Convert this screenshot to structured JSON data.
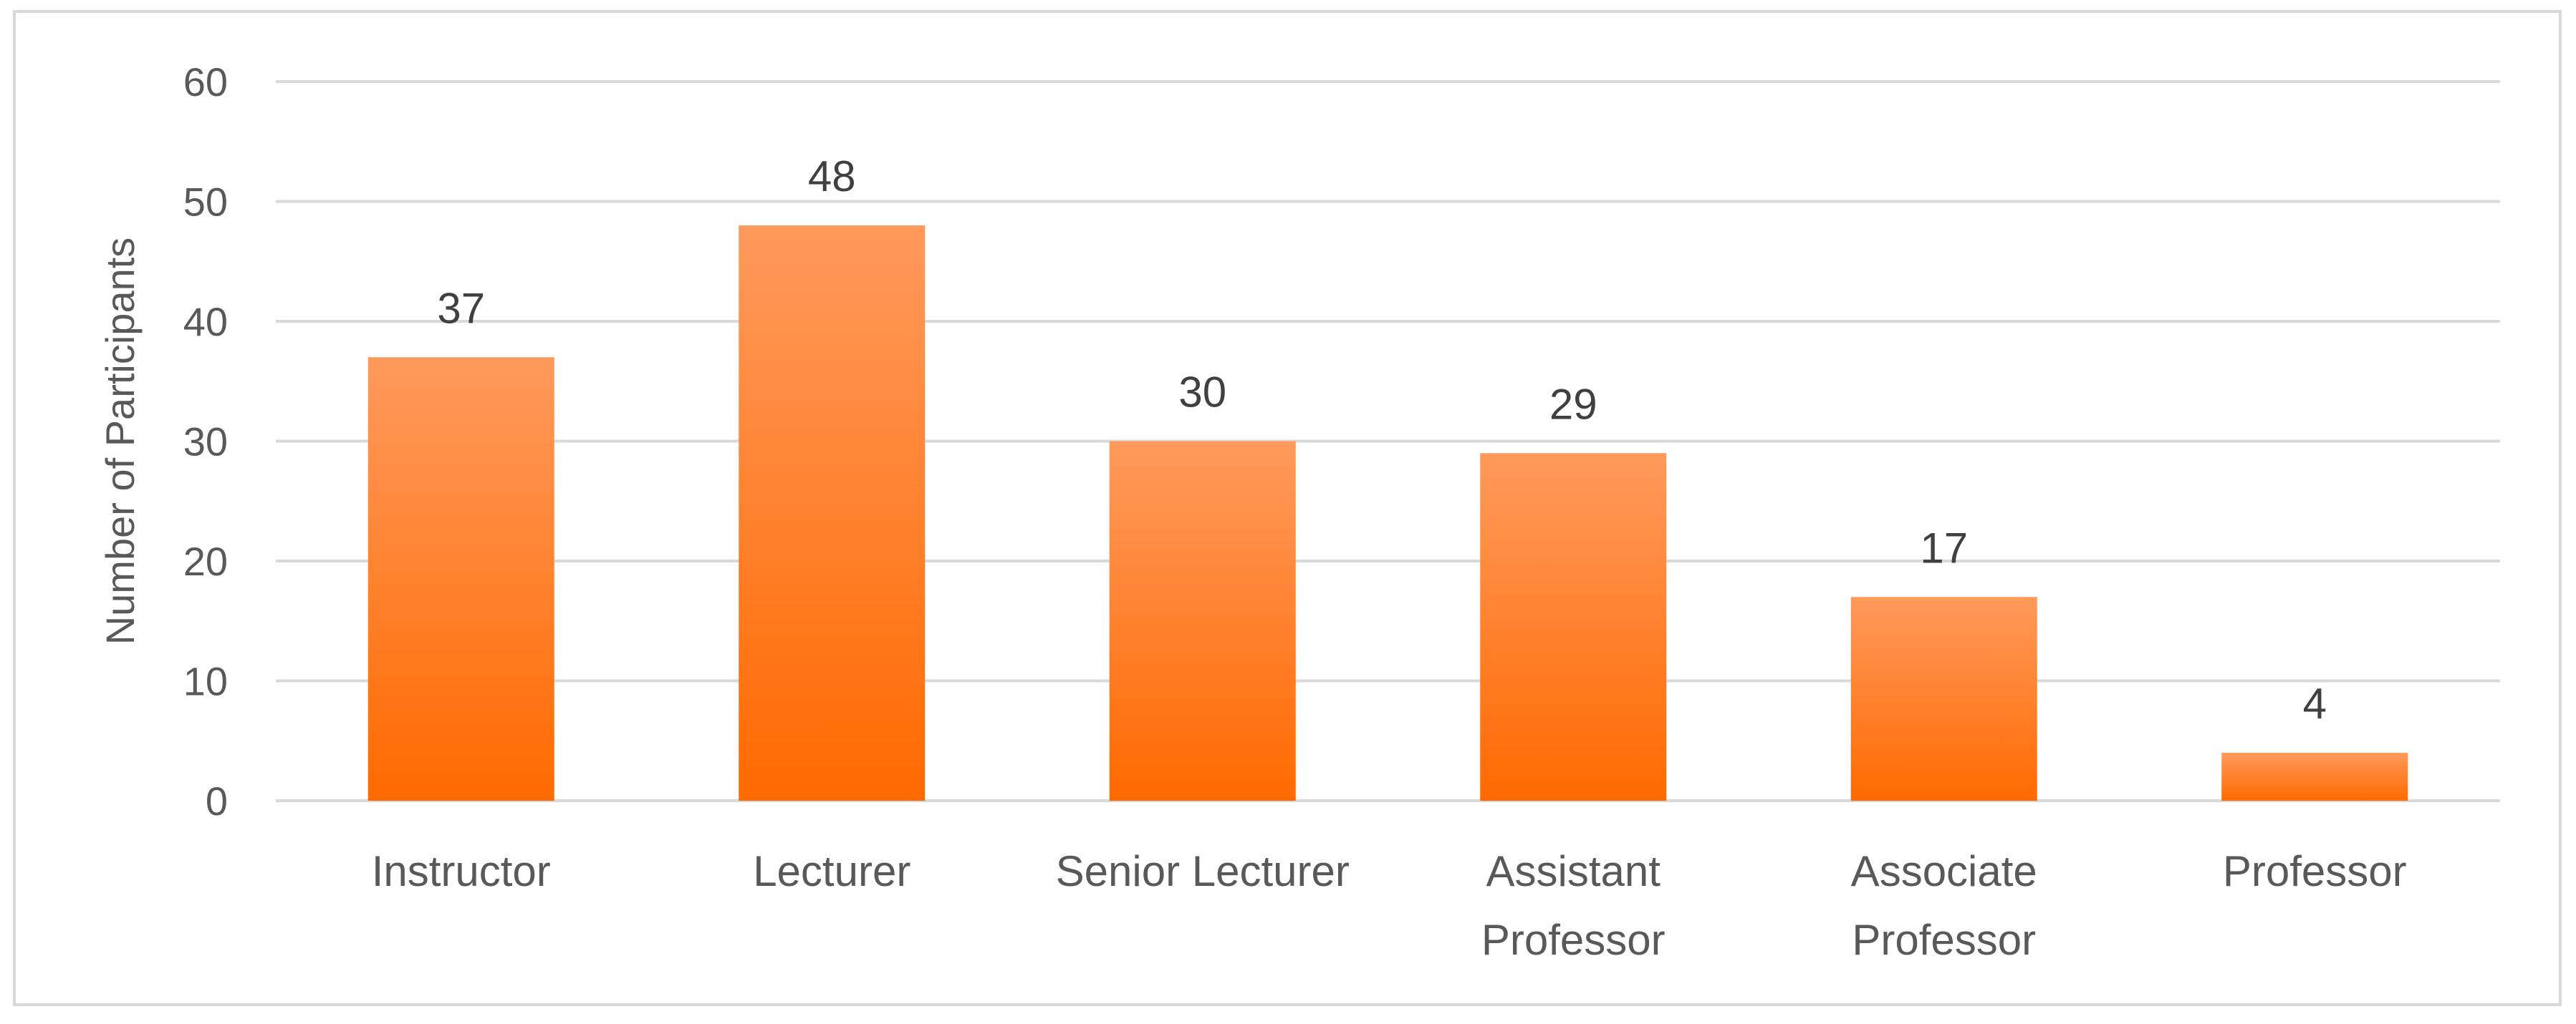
{
  "chart_data": {
    "type": "bar",
    "categories": [
      [
        "Instructor"
      ],
      [
        "Lecturer"
      ],
      [
        "Senior Lecturer"
      ],
      [
        "Assistant",
        "Professor"
      ],
      [
        "Associate",
        "Professor"
      ],
      [
        "Professor"
      ]
    ],
    "values": [
      37,
      48,
      30,
      29,
      17,
      4
    ],
    "title": "",
    "xlabel": "",
    "ylabel": "Number of Participants",
    "ylim": [
      0,
      60
    ],
    "yticks": [
      "0",
      "10",
      "20",
      "30",
      "40",
      "50",
      "60"
    ],
    "grid": true,
    "legend": "none",
    "data_labels": true,
    "colors": {
      "bar_top": "#ff9a5c",
      "bar_bottom": "#ff6a00",
      "grid": "#d9d9d9",
      "text": "#595959"
    }
  }
}
